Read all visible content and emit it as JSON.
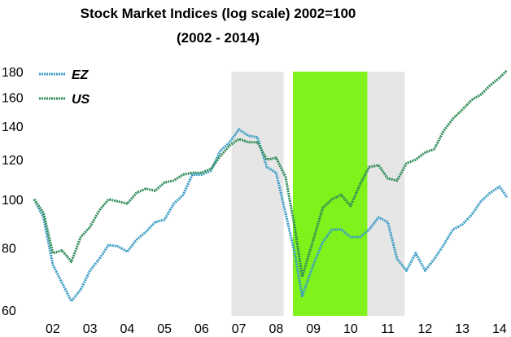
{
  "chart_data": {
    "type": "line",
    "title": "Stock Market Indices (log scale) 2002=100",
    "subtitle": "(2002 - 2014)",
    "y_scale": "log",
    "ylim": [
      60,
      180
    ],
    "y_ticks": [
      "60",
      "80",
      "100",
      "120",
      "140",
      "160",
      "180"
    ],
    "y_tick_values": [
      60,
      80,
      100,
      120,
      140,
      160,
      180
    ],
    "x_range": [
      2002.0,
      2014.7
    ],
    "x_tick_labels": [
      "02",
      "03",
      "04",
      "05",
      "06",
      "07",
      "08",
      "09",
      "10",
      "11",
      "12",
      "13",
      "14"
    ],
    "x_tick_positions": [
      2002.5,
      2003.5,
      2004.5,
      2005.5,
      2006.5,
      2007.5,
      2008.5,
      2009.5,
      2010.5,
      2011.5,
      2012.5,
      2013.5,
      2014.5
    ],
    "grid": false,
    "legend_position": "top-left",
    "shaded_periods": [
      {
        "from": 2007.3,
        "to": 2008.7,
        "color": "#e6e6e6"
      },
      {
        "from": 2008.95,
        "to": 2010.95,
        "color": "#7ff21c"
      },
      {
        "from": 2010.95,
        "to": 2011.95,
        "color": "#e6e6e6"
      }
    ],
    "series": [
      {
        "name": "EZ",
        "color": "#3a9cc4",
        "points": [
          [
            2002.0,
            100
          ],
          [
            2002.25,
            92
          ],
          [
            2002.5,
            74
          ],
          [
            2002.75,
            68
          ],
          [
            2003.0,
            62.5
          ],
          [
            2003.25,
            66
          ],
          [
            2003.5,
            72
          ],
          [
            2003.75,
            76
          ],
          [
            2004.0,
            81
          ],
          [
            2004.25,
            80.5
          ],
          [
            2004.5,
            78.5
          ],
          [
            2004.75,
            83
          ],
          [
            2005.0,
            86
          ],
          [
            2005.25,
            90
          ],
          [
            2005.5,
            91
          ],
          [
            2005.75,
            98
          ],
          [
            2006.0,
            102
          ],
          [
            2006.25,
            112
          ],
          [
            2006.5,
            112
          ],
          [
            2006.75,
            114
          ],
          [
            2007.0,
            125
          ],
          [
            2007.25,
            130
          ],
          [
            2007.5,
            138
          ],
          [
            2007.75,
            134
          ],
          [
            2008.0,
            133
          ],
          [
            2008.25,
            116
          ],
          [
            2008.5,
            113
          ],
          [
            2008.75,
            94
          ],
          [
            2009.0,
            78
          ],
          [
            2009.2,
            64
          ],
          [
            2009.5,
            74
          ],
          [
            2009.75,
            82
          ],
          [
            2010.0,
            87
          ],
          [
            2010.25,
            87
          ],
          [
            2010.5,
            84
          ],
          [
            2010.75,
            84
          ],
          [
            2011.0,
            87
          ],
          [
            2011.25,
            92
          ],
          [
            2011.5,
            90
          ],
          [
            2011.75,
            76
          ],
          [
            2012.0,
            72
          ],
          [
            2012.25,
            78
          ],
          [
            2012.5,
            72
          ],
          [
            2012.75,
            76
          ],
          [
            2013.0,
            81
          ],
          [
            2013.25,
            87
          ],
          [
            2013.5,
            89
          ],
          [
            2013.75,
            93
          ],
          [
            2014.0,
            99
          ],
          [
            2014.25,
            103
          ],
          [
            2014.5,
            106
          ],
          [
            2014.7,
            101
          ]
        ]
      },
      {
        "name": "US",
        "color": "#2e8b57",
        "points": [
          [
            2002.0,
            100
          ],
          [
            2002.25,
            94
          ],
          [
            2002.5,
            78
          ],
          [
            2002.75,
            79
          ],
          [
            2003.0,
            75
          ],
          [
            2003.25,
            84
          ],
          [
            2003.5,
            88
          ],
          [
            2003.75,
            95
          ],
          [
            2004.0,
            100
          ],
          [
            2004.25,
            99
          ],
          [
            2004.5,
            98
          ],
          [
            2004.75,
            103
          ],
          [
            2005.0,
            105
          ],
          [
            2005.25,
            104
          ],
          [
            2005.5,
            108
          ],
          [
            2005.75,
            109
          ],
          [
            2006.0,
            112
          ],
          [
            2006.25,
            113
          ],
          [
            2006.5,
            113
          ],
          [
            2006.75,
            115
          ],
          [
            2007.0,
            122
          ],
          [
            2007.25,
            128
          ],
          [
            2007.5,
            132
          ],
          [
            2007.75,
            130
          ],
          [
            2008.0,
            130
          ],
          [
            2008.25,
            120
          ],
          [
            2008.5,
            121
          ],
          [
            2008.75,
            111
          ],
          [
            2009.0,
            88
          ],
          [
            2009.2,
            70
          ],
          [
            2009.5,
            83
          ],
          [
            2009.75,
            96
          ],
          [
            2010.0,
            100
          ],
          [
            2010.25,
            102
          ],
          [
            2010.5,
            97
          ],
          [
            2010.75,
            107
          ],
          [
            2011.0,
            116
          ],
          [
            2011.25,
            117
          ],
          [
            2011.5,
            110
          ],
          [
            2011.75,
            109
          ],
          [
            2012.0,
            118
          ],
          [
            2012.25,
            120
          ],
          [
            2012.5,
            124
          ],
          [
            2012.75,
            126
          ],
          [
            2013.0,
            137
          ],
          [
            2013.25,
            145
          ],
          [
            2013.5,
            151
          ],
          [
            2013.75,
            158
          ],
          [
            2014.0,
            162
          ],
          [
            2014.25,
            169
          ],
          [
            2014.5,
            175
          ],
          [
            2014.7,
            181
          ]
        ]
      }
    ]
  }
}
